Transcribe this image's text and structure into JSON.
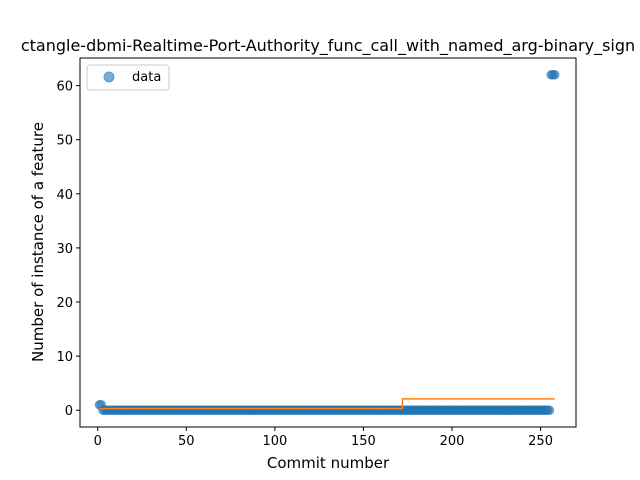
{
  "chart_data": {
    "type": "scatter",
    "title": "ctangle-dbmi-Realtime-Port-Authority_func_call_with_named_arg-binary_sign",
    "xlabel": "Commit number",
    "ylabel": "Number of instance of a feature",
    "xlim": [
      -10,
      270
    ],
    "ylim": [
      -3.1,
      65.1
    ],
    "xticks": [
      0,
      50,
      100,
      150,
      200,
      250
    ],
    "yticks": [
      0,
      10,
      20,
      30,
      40,
      50,
      60
    ],
    "grid": false,
    "legend": {
      "placement": "upper-left",
      "entries": [
        "data"
      ]
    },
    "series": [
      {
        "name": "data",
        "kind": "markers",
        "color": "#1f77b4",
        "segments": [
          {
            "x_start": 1,
            "x_end": 2,
            "y": 1
          },
          {
            "x_start": 3,
            "x_end": 255,
            "y": 0
          },
          {
            "x_start": 256,
            "x_end": 258,
            "y": 62
          }
        ]
      },
      {
        "kind": "step-line",
        "color": "#ff7f0e",
        "steps": [
          {
            "x_start": 1,
            "x_end": 172,
            "y": 0.3
          },
          {
            "x_start": 172,
            "x_end": 258,
            "y": 2.1
          }
        ]
      }
    ]
  }
}
